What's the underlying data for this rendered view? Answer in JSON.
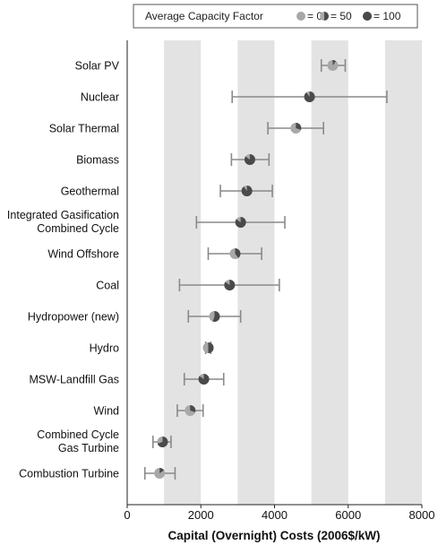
{
  "chart_data": {
    "type": "scatter",
    "title": "",
    "xlabel": "Capital (Overnight) Costs (2006$/kW)",
    "ylabel": "",
    "xlim": [
      0,
      8000
    ],
    "xticks": [
      0,
      2000,
      4000,
      6000,
      8000
    ],
    "grid": "alternating shaded vertical bands",
    "legend": {
      "title": "Average Capacity Factor",
      "position": "top",
      "entries": [
        {
          "label": "= 0",
          "fill": 0
        },
        {
          "label": "= 50",
          "fill": 50
        },
        {
          "label": "= 100",
          "fill": 100
        }
      ]
    },
    "series": [
      {
        "category": "Solar PV",
        "lines": [
          "Solar PV"
        ],
        "value": 5580,
        "low": 5270,
        "high": 5920,
        "capacity_factor": 10
      },
      {
        "category": "Nuclear",
        "lines": [
          "Nuclear"
        ],
        "value": 4950,
        "low": 2850,
        "high": 7050,
        "capacity_factor": 90
      },
      {
        "category": "Solar Thermal",
        "lines": [
          "Solar Thermal"
        ],
        "value": 4580,
        "low": 3820,
        "high": 5330,
        "capacity_factor": 30
      },
      {
        "category": "Biomass",
        "lines": [
          "Biomass"
        ],
        "value": 3330,
        "low": 2830,
        "high": 3850,
        "capacity_factor": 85
      },
      {
        "category": "Geothermal",
        "lines": [
          "Geothermal"
        ],
        "value": 3250,
        "low": 2530,
        "high": 3940,
        "capacity_factor": 90
      },
      {
        "category": "Integrated Gasification Combined Cycle",
        "lines": [
          "Integrated Gasification",
          "Combined Cycle"
        ],
        "value": 3080,
        "low": 1880,
        "high": 4280,
        "capacity_factor": 85
      },
      {
        "category": "Wind Offshore",
        "lines": [
          "Wind Offshore"
        ],
        "value": 2930,
        "low": 2200,
        "high": 3650,
        "capacity_factor": 40
      },
      {
        "category": "Coal",
        "lines": [
          "Coal"
        ],
        "value": 2780,
        "low": 1420,
        "high": 4130,
        "capacity_factor": 85
      },
      {
        "category": "Hydropower (new)",
        "lines": [
          "Hydropower (new)"
        ],
        "value": 2370,
        "low": 1660,
        "high": 3080,
        "capacity_factor": 55
      },
      {
        "category": "Hydro",
        "lines": [
          "Hydro"
        ],
        "value": 2200,
        "low": 2130,
        "high": 2270,
        "capacity_factor": 50
      },
      {
        "category": "MSW-Landfill Gas",
        "lines": [
          "MSW-Landfill Gas"
        ],
        "value": 2080,
        "low": 1550,
        "high": 2620,
        "capacity_factor": 85
      },
      {
        "category": "Wind",
        "lines": [
          "Wind"
        ],
        "value": 1710,
        "low": 1360,
        "high": 2060,
        "capacity_factor": 30
      },
      {
        "category": "Combined Cycle Gas Turbine",
        "lines": [
          "Combined Cycle",
          "Gas Turbine"
        ],
        "value": 960,
        "low": 700,
        "high": 1190,
        "capacity_factor": 70
      },
      {
        "category": "Combustion Turbine",
        "lines": [
          "Combustion Turbine"
        ],
        "value": 880,
        "low": 480,
        "high": 1300,
        "capacity_factor": 15
      }
    ]
  },
  "colors": {
    "band": "#e3e3e3",
    "marker_light": "#a8a8a8",
    "marker_dark": "#4a4a4a",
    "error_bar": "#8a8a8a",
    "axis": "#222222"
  }
}
